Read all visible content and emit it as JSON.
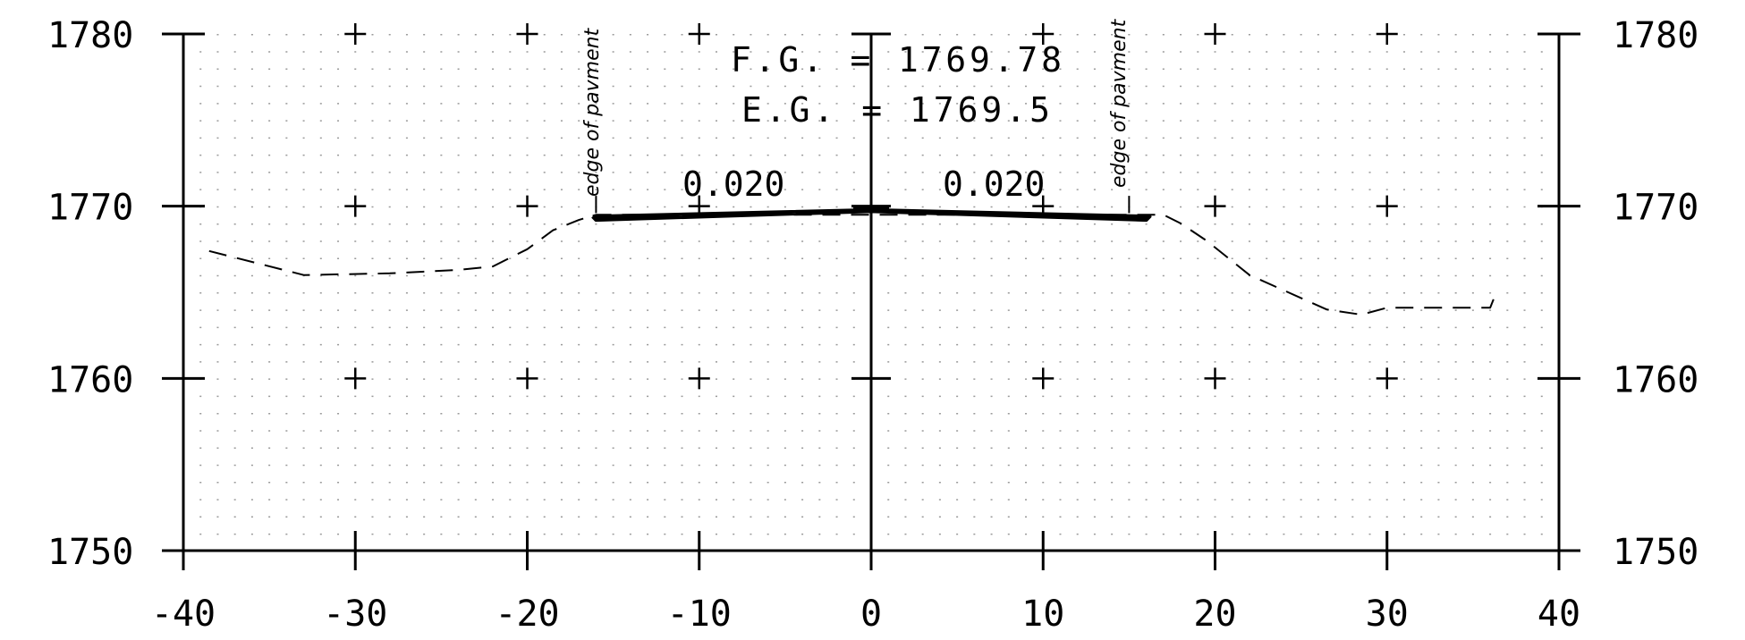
{
  "chart_data": {
    "type": "line",
    "title": "",
    "xlabel": "",
    "ylabel": "",
    "xlim": [
      -40,
      40
    ],
    "ylim": [
      1750,
      1780
    ],
    "x_ticks": [
      -40,
      -30,
      -20,
      -10,
      0,
      10,
      20,
      30,
      40
    ],
    "x_tick_labels": [
      "-40",
      "-30",
      "-20",
      "-10",
      "0",
      "10",
      "20",
      "30",
      "40"
    ],
    "y_ticks": [
      1750,
      1760,
      1770,
      1780
    ],
    "y_tick_labels": [
      "1750",
      "1760",
      "1770",
      "1780"
    ],
    "grid": "dotted",
    "series": [
      {
        "style": "dashed",
        "points": [
          [
            -38.5,
            1767.4
          ],
          [
            -33,
            1766
          ],
          [
            -28,
            1766.1
          ],
          [
            -24,
            1766.3
          ],
          [
            -22,
            1766.5
          ],
          [
            -20,
            1767.5
          ],
          [
            -18.5,
            1768.6
          ],
          [
            -17,
            1769.2
          ],
          [
            -16,
            1769.5
          ],
          [
            17,
            1769.5
          ],
          [
            18,
            1769.0
          ],
          [
            19.5,
            1768.0
          ],
          [
            22,
            1766.0
          ],
          [
            26.5,
            1764.0
          ],
          [
            28.5,
            1763.7
          ],
          [
            30,
            1764.1
          ],
          [
            36,
            1764.1
          ],
          [
            36.2,
            1764.6
          ]
        ]
      },
      {
        "style": "solid",
        "points": [
          [
            -16.2,
            1769.4
          ],
          [
            -16,
            1769.2
          ],
          [
            0,
            1769.7
          ],
          [
            16,
            1769.2
          ],
          [
            16.2,
            1769.4
          ],
          [
            0,
            1769.78
          ],
          [
            -16.2,
            1769.4
          ]
        ]
      }
    ],
    "annotations": {
      "fg": "F.G. = 1769.78",
      "eg": "E.G. = 1769.5",
      "slope_left": "0.020",
      "slope_right": "0.020",
      "edge_left": "edge of pavment",
      "edge_right": "edge of pavment"
    }
  }
}
